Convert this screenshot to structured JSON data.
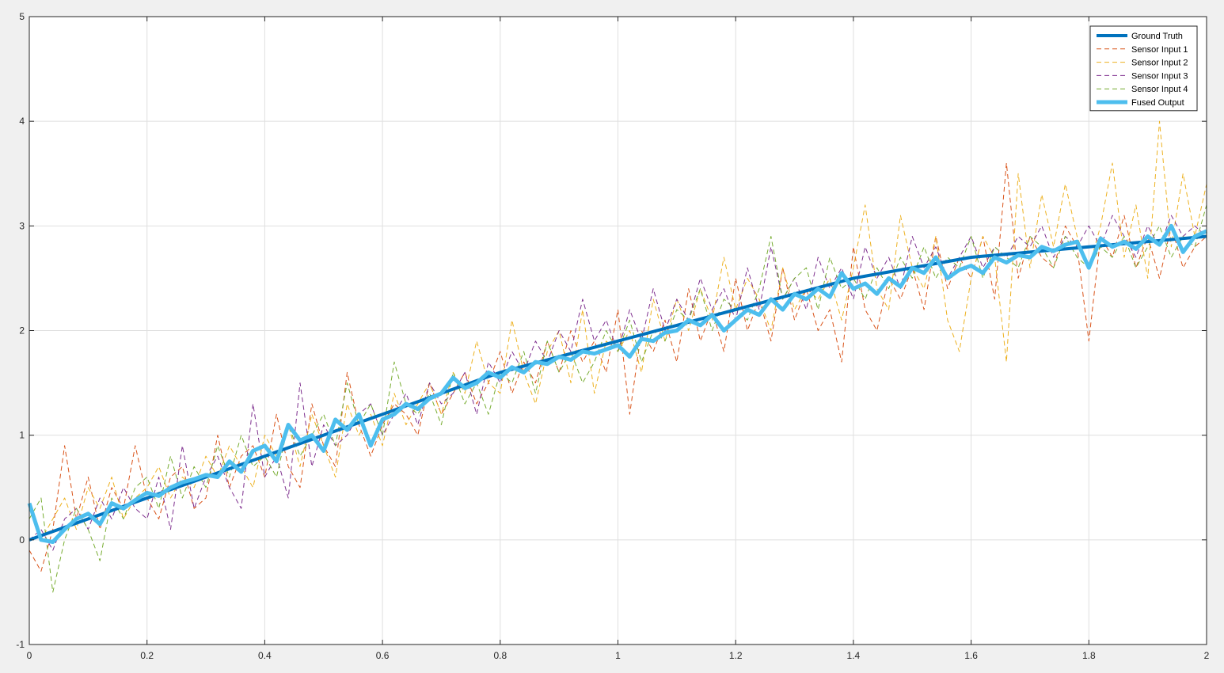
{
  "chart_data": {
    "type": "line",
    "title": "",
    "xlabel": "",
    "ylabel": "",
    "xlim": [
      0,
      2
    ],
    "ylim": [
      -1,
      5
    ],
    "x_ticks": [
      "0",
      "0.2",
      "0.4",
      "0.6",
      "0.8",
      "1",
      "1.2",
      "1.4",
      "1.6",
      "1.8",
      "2"
    ],
    "y_ticks": [
      "-1",
      "0",
      "1",
      "2",
      "3",
      "4",
      "5"
    ],
    "grid": true,
    "legend_position": "top-right",
    "x": [
      0,
      0.02,
      0.04,
      0.06,
      0.08,
      0.1,
      0.12,
      0.14,
      0.16,
      0.18,
      0.2,
      0.22,
      0.24,
      0.26,
      0.28,
      0.3,
      0.32,
      0.34,
      0.36,
      0.38,
      0.4,
      0.42,
      0.44,
      0.46,
      0.48,
      0.5,
      0.52,
      0.54,
      0.56,
      0.58,
      0.6,
      0.62,
      0.64,
      0.66,
      0.68,
      0.7,
      0.72,
      0.74,
      0.76,
      0.78,
      0.8,
      0.82,
      0.84,
      0.86,
      0.88,
      0.9,
      0.92,
      0.94,
      0.96,
      0.98,
      1.0,
      1.02,
      1.04,
      1.06,
      1.08,
      1.1,
      1.12,
      1.14,
      1.16,
      1.18,
      1.2,
      1.22,
      1.24,
      1.26,
      1.28,
      1.3,
      1.32,
      1.34,
      1.36,
      1.38,
      1.4,
      1.42,
      1.44,
      1.46,
      1.48,
      1.5,
      1.52,
      1.54,
      1.56,
      1.58,
      1.6,
      1.62,
      1.64,
      1.66,
      1.68,
      1.7,
      1.72,
      1.74,
      1.76,
      1.78,
      1.8,
      1.82,
      1.84,
      1.86,
      1.88,
      1.9,
      1.92,
      1.94,
      1.96,
      1.98,
      2.0
    ],
    "series": [
      {
        "name": "Ground Truth",
        "color": "#0072BD",
        "style": "solid-thick",
        "values": [
          0,
          0.04,
          0.08,
          0.12,
          0.16,
          0.2,
          0.24,
          0.28,
          0.32,
          0.36,
          0.4,
          0.44,
          0.48,
          0.52,
          0.56,
          0.6,
          0.64,
          0.68,
          0.72,
          0.76,
          0.8,
          0.84,
          0.88,
          0.92,
          0.96,
          1.0,
          1.04,
          1.08,
          1.12,
          1.16,
          1.2,
          1.24,
          1.28,
          1.32,
          1.36,
          1.4,
          1.44,
          1.48,
          1.52,
          1.56,
          1.6,
          1.63,
          1.66,
          1.69,
          1.72,
          1.75,
          1.78,
          1.81,
          1.84,
          1.87,
          1.9,
          1.93,
          1.96,
          1.99,
          2.02,
          2.05,
          2.08,
          2.11,
          2.14,
          2.17,
          2.2,
          2.23,
          2.26,
          2.29,
          2.32,
          2.35,
          2.38,
          2.41,
          2.44,
          2.47,
          2.5,
          2.52,
          2.54,
          2.56,
          2.58,
          2.6,
          2.62,
          2.64,
          2.66,
          2.68,
          2.7,
          2.71,
          2.72,
          2.73,
          2.74,
          2.75,
          2.76,
          2.77,
          2.78,
          2.79,
          2.8,
          2.81,
          2.82,
          2.83,
          2.84,
          2.85,
          2.86,
          2.87,
          2.88,
          2.89,
          2.9
        ]
      },
      {
        "name": "Sensor Input 1",
        "color": "#D95319",
        "style": "dashed",
        "values": [
          -0.1,
          -0.3,
          0.1,
          0.9,
          0.2,
          0.6,
          0.1,
          0.5,
          0.3,
          0.9,
          0.4,
          0.2,
          0.6,
          0.7,
          0.3,
          0.4,
          1.0,
          0.5,
          0.8,
          0.9,
          0.6,
          1.2,
          0.7,
          0.5,
          1.3,
          0.9,
          0.7,
          1.6,
          1.1,
          0.8,
          1.1,
          1.3,
          1.2,
          1.0,
          1.5,
          1.2,
          1.4,
          1.6,
          1.3,
          1.5,
          1.8,
          1.4,
          1.7,
          1.5,
          1.9,
          1.6,
          2.0,
          1.7,
          1.9,
          1.6,
          2.2,
          1.2,
          2.0,
          1.8,
          2.1,
          1.7,
          2.4,
          1.9,
          2.2,
          1.8,
          2.5,
          2.0,
          2.3,
          1.9,
          2.6,
          2.1,
          2.4,
          2.0,
          2.2,
          1.7,
          2.8,
          2.2,
          2.0,
          2.5,
          2.3,
          2.6,
          2.2,
          2.9,
          2.4,
          2.7,
          2.5,
          2.9,
          2.3,
          3.6,
          2.5,
          2.9,
          2.7,
          2.6,
          3.0,
          2.8,
          1.9,
          2.9,
          2.7,
          3.1,
          2.6,
          2.9,
          2.5,
          3.0,
          2.6,
          2.8,
          2.9
        ]
      },
      {
        "name": "Sensor Input 2",
        "color": "#EDB120",
        "style": "dashed",
        "values": [
          0.3,
          0.0,
          0.2,
          0.4,
          0.1,
          0.5,
          0.3,
          0.6,
          0.2,
          0.4,
          0.5,
          0.7,
          0.4,
          0.6,
          0.5,
          0.8,
          0.6,
          0.9,
          0.7,
          0.5,
          1.0,
          0.8,
          1.1,
          0.7,
          1.2,
          0.9,
          0.6,
          1.3,
          1.0,
          1.2,
          0.9,
          1.4,
          1.1,
          1.3,
          1.5,
          1.2,
          1.6,
          1.4,
          1.9,
          1.5,
          1.4,
          2.1,
          1.6,
          1.3,
          1.8,
          2.0,
          1.5,
          2.2,
          1.4,
          1.9,
          1.8,
          2.0,
          1.6,
          2.3,
          1.9,
          2.3,
          2.0,
          2.4,
          2.1,
          2.7,
          2.2,
          2.5,
          2.3,
          2.0,
          2.6,
          2.2,
          2.4,
          2.3,
          2.5,
          2.1,
          2.6,
          3.2,
          2.4,
          2.2,
          3.1,
          2.6,
          2.4,
          2.9,
          2.1,
          1.8,
          2.5,
          2.9,
          2.7,
          1.7,
          3.5,
          2.6,
          3.3,
          2.8,
          3.4,
          2.9,
          2.6,
          3.0,
          3.6,
          2.7,
          3.2,
          2.5,
          4.0,
          2.8,
          3.5,
          2.9,
          3.4
        ]
      },
      {
        "name": "Sensor Input 3",
        "color": "#7E2F8E",
        "style": "dashed",
        "values": [
          0.0,
          0.1,
          -0.1,
          0.2,
          0.3,
          0.1,
          0.4,
          0.2,
          0.5,
          0.3,
          0.2,
          0.6,
          0.1,
          0.9,
          0.3,
          0.6,
          0.8,
          0.5,
          0.3,
          1.3,
          0.6,
          0.8,
          0.4,
          1.5,
          0.7,
          1.1,
          0.9,
          1.0,
          1.2,
          1.3,
          1.0,
          1.2,
          1.4,
          1.1,
          1.5,
          1.3,
          1.4,
          1.6,
          1.2,
          1.7,
          1.5,
          1.8,
          1.6,
          1.9,
          1.7,
          2.0,
          1.8,
          2.3,
          1.9,
          2.1,
          1.8,
          2.2,
          1.9,
          2.4,
          2.0,
          2.3,
          2.1,
          2.5,
          2.2,
          2.4,
          2.1,
          2.6,
          2.2,
          2.8,
          2.3,
          2.5,
          2.2,
          2.7,
          2.4,
          2.6,
          2.3,
          2.8,
          2.5,
          2.7,
          2.4,
          2.9,
          2.6,
          2.8,
          2.5,
          2.7,
          2.9,
          2.6,
          2.8,
          2.7,
          2.9,
          2.8,
          3.0,
          2.7,
          2.9,
          2.8,
          3.0,
          2.8,
          3.1,
          2.9,
          2.7,
          3.0,
          2.8,
          3.1,
          2.9,
          3.0,
          2.9
        ]
      },
      {
        "name": "Sensor Input 4",
        "color": "#77AC30",
        "style": "dashed",
        "values": [
          0.2,
          0.4,
          -0.5,
          0.0,
          0.3,
          0.1,
          -0.2,
          0.4,
          0.2,
          0.5,
          0.6,
          0.3,
          0.8,
          0.4,
          0.7,
          0.5,
          0.9,
          0.6,
          1.0,
          0.7,
          0.8,
          0.6,
          1.1,
          0.8,
          1.0,
          1.2,
          0.9,
          1.5,
          1.1,
          1.3,
          1.0,
          1.7,
          1.3,
          1.2,
          1.4,
          1.1,
          1.6,
          1.3,
          1.5,
          1.2,
          1.6,
          1.5,
          1.8,
          1.4,
          1.9,
          1.6,
          1.8,
          1.5,
          1.7,
          2.0,
          1.8,
          2.1,
          1.7,
          2.0,
          1.9,
          2.2,
          2.1,
          2.4,
          2.0,
          2.3,
          2.2,
          2.1,
          2.4,
          2.9,
          2.3,
          2.5,
          2.6,
          2.2,
          2.7,
          2.4,
          2.5,
          2.3,
          2.6,
          2.4,
          2.7,
          2.5,
          2.8,
          2.5,
          2.7,
          2.6,
          2.9,
          2.5,
          2.8,
          2.7,
          2.6,
          2.9,
          2.8,
          2.6,
          2.9,
          2.7,
          2.6,
          2.8,
          2.7,
          2.9,
          2.6,
          2.8,
          3.0,
          2.7,
          2.9,
          2.8,
          3.2
        ]
      },
      {
        "name": "Fused Output",
        "color": "#4DBEEE",
        "style": "solid-thick",
        "values": [
          0.35,
          0.0,
          -0.02,
          0.1,
          0.2,
          0.25,
          0.15,
          0.35,
          0.3,
          0.38,
          0.45,
          0.42,
          0.5,
          0.55,
          0.58,
          0.62,
          0.6,
          0.75,
          0.65,
          0.85,
          0.9,
          0.75,
          1.1,
          0.95,
          1.0,
          0.85,
          1.15,
          1.05,
          1.2,
          0.9,
          1.15,
          1.2,
          1.3,
          1.25,
          1.35,
          1.4,
          1.55,
          1.45,
          1.5,
          1.6,
          1.55,
          1.65,
          1.6,
          1.7,
          1.68,
          1.75,
          1.72,
          1.8,
          1.78,
          1.82,
          1.86,
          1.75,
          1.92,
          1.9,
          1.98,
          2.0,
          2.1,
          2.05,
          2.15,
          2.0,
          2.1,
          2.2,
          2.15,
          2.3,
          2.2,
          2.35,
          2.3,
          2.4,
          2.32,
          2.55,
          2.4,
          2.45,
          2.35,
          2.5,
          2.42,
          2.6,
          2.55,
          2.7,
          2.5,
          2.58,
          2.62,
          2.55,
          2.7,
          2.65,
          2.72,
          2.7,
          2.8,
          2.76,
          2.82,
          2.85,
          2.6,
          2.88,
          2.8,
          2.85,
          2.78,
          2.9,
          2.82,
          3.0,
          2.75,
          2.9,
          2.95
        ]
      }
    ]
  }
}
